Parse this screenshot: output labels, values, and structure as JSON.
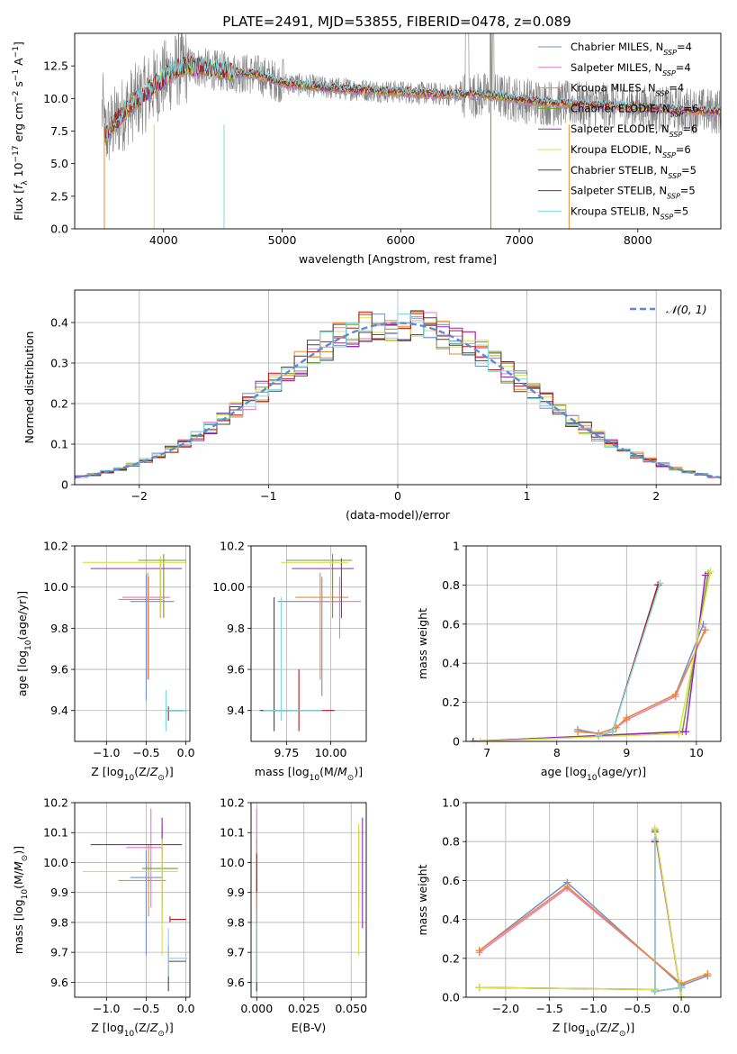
{
  "figure": {
    "title": "PLATE=2491, MJD=53855, FIBERID=0478, z=0.089"
  },
  "colors": {
    "Chabrier MILES": "#6f8fd6",
    "Salpeter MILES": "#e37ac8",
    "Kroupa MILES": "#ef8a2a",
    "Chabrier ELODIE": "#6f9e2f",
    "Salpeter ELODIE": "#9a24b8",
    "Kroupa ELODIE": "#d8e04a",
    "Chabrier STELIB": "#444444",
    "Salpeter STELIB": "#b01a1a",
    "Kroupa STELIB": "#7fd8e0",
    "data": "#7f7f7f",
    "gauss": "#5b8bd6"
  },
  "chart_data": [
    {
      "id": "spectrum",
      "type": "line",
      "xlabel": "wavelength [Angstrom, rest frame]",
      "ylabel": "Flux [f_λ 10^-17 erg cm^-2 s^-1 A^-1]",
      "xlim": [
        3250,
        8700
      ],
      "ylim": [
        0,
        15
      ],
      "xticks": [
        4000,
        5000,
        6000,
        7000,
        8000
      ],
      "yticks": [
        0.0,
        2.5,
        5.0,
        7.5,
        10.0,
        12.5
      ],
      "grid": false,
      "legend_position": "upper-right",
      "legend": [
        {
          "base": "Chabrier MILES, N",
          "sub": "SSP",
          "tail": "=4"
        },
        {
          "base": "Salpeter MILES, N",
          "sub": "SSP",
          "tail": "=4"
        },
        {
          "base": "Kroupa MILES, N",
          "sub": "SSP",
          "tail": "=4"
        },
        {
          "base": "Chabrier ELODIE, N",
          "sub": "SSP",
          "tail": "=6"
        },
        {
          "base": "Salpeter ELODIE, N",
          "sub": "SSP",
          "tail": "=6"
        },
        {
          "base": "Kroupa ELODIE, N",
          "sub": "SSP",
          "tail": "=6"
        },
        {
          "base": "Chabrier STELIB, N",
          "sub": "SSP",
          "tail": "=5"
        },
        {
          "base": "Salpeter STELIB, N",
          "sub": "SSP",
          "tail": "=5"
        },
        {
          "base": "Kroupa STELIB, N",
          "sub": "SSP",
          "tail": "=5"
        }
      ],
      "model_curve": {
        "x": [
          3500,
          3600,
          3700,
          3800,
          3900,
          4000,
          4100,
          4200,
          4300,
          4400,
          4500,
          4600,
          4700,
          4800,
          4900,
          5000,
          5200,
          5400,
          5600,
          5800,
          6000,
          6200,
          6400,
          6600,
          6800,
          7000,
          7200,
          7400,
          7600,
          7800,
          8000,
          8200,
          8400,
          8700
        ],
        "y": [
          7.2,
          8.2,
          9.3,
          10.0,
          10.8,
          11.5,
          12.2,
          12.5,
          12.4,
          12.2,
          12.1,
          12.0,
          11.9,
          11.8,
          11.5,
          11.2,
          11.0,
          10.8,
          10.7,
          10.6,
          10.5,
          10.4,
          10.3,
          10.3,
          10.2,
          9.9,
          9.7,
          9.6,
          9.5,
          9.4,
          9.3,
          9.2,
          9.1,
          9.0
        ]
      }
    },
    {
      "id": "residuals",
      "type": "line",
      "xlabel": "(data-model)/error",
      "ylabel": "Normed distribution",
      "xlim": [
        -2.5,
        2.5
      ],
      "ylim": [
        0,
        0.48
      ],
      "xticks": [
        -2,
        -1,
        0,
        1,
        2
      ],
      "yticks": [
        0.0,
        0.1,
        0.2,
        0.3,
        0.4
      ],
      "grid": true,
      "legend_position": "upper-right",
      "legend_label": "𝒩(0, 1)",
      "gaussian": {
        "mean": 0,
        "sigma": 1
      }
    },
    {
      "id": "age_vs_Z",
      "type": "scatter",
      "xlabel": "Z [log10(Z/Z⊙)]",
      "ylabel": "age  [log10(age/yr)]",
      "xlim": [
        -1.4,
        0.05
      ],
      "ylim": [
        9.25,
        10.2
      ],
      "xticks": [
        -1.0,
        -0.5,
        0.0
      ],
      "yticks": [
        9.4,
        9.6,
        9.8,
        10.0,
        10.2
      ],
      "grid": true,
      "crosses": [
        {
          "s": "Chabrier MILES",
          "x": -0.5,
          "y": 9.93,
          "xe": [
            -0.7,
            -0.15
          ],
          "ye": [
            9.45,
            10.06
          ]
        },
        {
          "s": "Salpeter MILES",
          "x": -0.47,
          "y": 9.95,
          "xe": [
            -0.8,
            -0.2
          ],
          "ye": [
            9.55,
            10.05
          ]
        },
        {
          "s": "Kroupa MILES",
          "x": -0.48,
          "y": 9.94,
          "xe": [
            -0.85,
            -0.3
          ],
          "ye": [
            9.55,
            10.07
          ]
        },
        {
          "s": "Chabrier ELODIE",
          "x": -0.28,
          "y": 10.13,
          "xe": [
            -0.6,
            0.0
          ],
          "ye": [
            9.85,
            10.16
          ]
        },
        {
          "s": "Salpeter ELODIE",
          "x": -0.32,
          "y": 10.09,
          "xe": [
            -1.2,
            -0.05
          ],
          "ye": [
            9.85,
            10.14
          ]
        },
        {
          "s": "Kroupa ELODIE",
          "x": -0.32,
          "y": 10.12,
          "xe": [
            -1.3,
            0.0
          ],
          "ye": [
            9.85,
            10.15
          ]
        },
        {
          "s": "Chabrier STELIB",
          "x": -0.25,
          "y": 9.4,
          "xe": [
            -0.25,
            0.0
          ],
          "ye": [
            9.3,
            9.45
          ]
        },
        {
          "s": "Salpeter STELIB",
          "x": -0.22,
          "y": 9.4,
          "xe": [
            -0.22,
            -0.05
          ],
          "ye": [
            9.35,
            9.42
          ]
        },
        {
          "s": "Kroupa STELIB",
          "x": -0.25,
          "y": 9.4,
          "xe": [
            -0.25,
            0.02
          ],
          "ye": [
            9.3,
            9.5
          ]
        }
      ]
    },
    {
      "id": "age_vs_mass",
      "type": "scatter",
      "xlabel": "mass [log10(M/M⊙)]",
      "ylabel": "",
      "xlim": [
        9.55,
        10.2
      ],
      "ylim": [
        9.25,
        10.2
      ],
      "xticks": [
        9.75,
        10.0
      ],
      "yticks": [
        9.4,
        9.6,
        9.8,
        10.0,
        10.2
      ],
      "grid": true,
      "crosses": [
        {
          "s": "Chabrier MILES",
          "x": 9.95,
          "y": 9.93,
          "xe": [
            9.7,
            10.05
          ],
          "ye": [
            9.47,
            10.05
          ]
        },
        {
          "s": "Salpeter MILES",
          "x": 10.05,
          "y": 9.93,
          "xe": [
            9.9,
            10.17
          ],
          "ye": [
            9.75,
            10.05
          ]
        },
        {
          "s": "Kroupa MILES",
          "x": 9.94,
          "y": 9.95,
          "xe": [
            9.8,
            10.1
          ],
          "ye": [
            9.55,
            10.07
          ]
        },
        {
          "s": "Chabrier ELODIE",
          "x": 10.01,
          "y": 10.13,
          "xe": [
            9.75,
            10.12
          ],
          "ye": [
            9.85,
            10.16
          ]
        },
        {
          "s": "Salpeter ELODIE",
          "x": 10.06,
          "y": 10.09,
          "xe": [
            9.78,
            10.13
          ],
          "ye": [
            9.85,
            10.14
          ]
        },
        {
          "s": "Kroupa ELODIE",
          "x": 10.0,
          "y": 10.12,
          "xe": [
            9.72,
            10.1
          ],
          "ye": [
            9.85,
            10.15
          ]
        },
        {
          "s": "Chabrier STELIB",
          "x": 9.68,
          "y": 9.4,
          "xe": [
            9.6,
            9.78
          ],
          "ye": [
            9.3,
            9.95
          ]
        },
        {
          "s": "Salpeter STELIB",
          "x": 9.82,
          "y": 9.4,
          "xe": [
            9.65,
            10.02
          ],
          "ye": [
            9.3,
            9.6
          ]
        },
        {
          "s": "Kroupa STELIB",
          "x": 9.72,
          "y": 9.4,
          "xe": [
            9.62,
            9.95
          ],
          "ye": [
            9.35,
            9.95
          ]
        }
      ]
    },
    {
      "id": "weight_vs_age",
      "type": "line",
      "xlabel": "age  [log10(age/yr)]",
      "ylabel": "mass weight",
      "xlim": [
        6.7,
        10.35
      ],
      "ylim": [
        0,
        1.0
      ],
      "xticks": [
        7,
        8,
        9,
        10
      ],
      "yticks": [
        0.0,
        0.2,
        0.4,
        0.6,
        0.8,
        1.0
      ],
      "grid": true,
      "series": [
        {
          "s": "Chabrier MILES",
          "x": [
            8.3,
            8.6,
            8.85,
            9.0,
            9.7,
            10.1
          ],
          "y": [
            0.06,
            0.04,
            0.07,
            0.12,
            0.24,
            0.6
          ]
        },
        {
          "s": "Salpeter MILES",
          "x": [
            8.3,
            8.6,
            8.85,
            9.0,
            9.7,
            10.12
          ],
          "y": [
            0.05,
            0.04,
            0.07,
            0.11,
            0.23,
            0.57
          ]
        },
        {
          "s": "Kroupa MILES",
          "x": [
            8.3,
            8.6,
            8.85,
            9.0,
            9.7,
            10.13
          ],
          "y": [
            0.05,
            0.04,
            0.07,
            0.12,
            0.24,
            0.57
          ]
        },
        {
          "s": "Chabrier ELODIE",
          "x": [
            6.8,
            9.8,
            10.17
          ],
          "y": [
            0.0,
            0.05,
            0.86
          ]
        },
        {
          "s": "Salpeter ELODIE",
          "x": [
            6.8,
            9.85,
            10.13
          ],
          "y": [
            0.0,
            0.05,
            0.85
          ]
        },
        {
          "s": "Kroupa ELODIE",
          "x": [
            6.9,
            9.75,
            10.2
          ],
          "y": [
            0.0,
            0.04,
            0.87
          ]
        },
        {
          "s": "Chabrier STELIB",
          "x": [
            8.6,
            8.8,
            9.45
          ],
          "y": [
            0.03,
            0.05,
            0.8
          ]
        },
        {
          "s": "Salpeter STELIB",
          "x": [
            8.6,
            8.8,
            9.45
          ],
          "y": [
            0.03,
            0.05,
            0.8
          ]
        },
        {
          "s": "Kroupa STELIB",
          "x": [
            8.6,
            8.8,
            9.48
          ],
          "y": [
            0.03,
            0.05,
            0.81
          ]
        }
      ]
    },
    {
      "id": "mass_vs_Z",
      "type": "scatter",
      "xlabel": "Z [log10(Z/Z⊙)]",
      "ylabel": "mass [log10(M/M⊙)]",
      "xlim": [
        -1.4,
        0.05
      ],
      "ylim": [
        9.55,
        10.2
      ],
      "xticks": [
        -1.0,
        -0.5,
        0.0
      ],
      "yticks": [
        9.6,
        9.7,
        9.8,
        9.9,
        10.0,
        10.1,
        10.2
      ],
      "grid": true,
      "crosses": [
        {
          "s": "Chabrier MILES",
          "x": -0.5,
          "y": 9.95,
          "xe": [
            -0.7,
            -0.3
          ],
          "ye": [
            9.69,
            10.04
          ]
        },
        {
          "s": "Salpeter MILES",
          "x": -0.44,
          "y": 10.05,
          "xe": [
            -0.75,
            -0.3
          ],
          "ye": [
            9.85,
            10.18
          ]
        },
        {
          "s": "Kroupa MILES",
          "x": -0.47,
          "y": 9.94,
          "xe": [
            -0.85,
            -0.25
          ],
          "ye": [
            9.82,
            10.06
          ]
        },
        {
          "s": "Chabrier ELODIE",
          "x": -0.3,
          "y": 9.98,
          "xe": [
            -0.55,
            -0.1
          ],
          "ye": [
            9.8,
            10.12
          ]
        },
        {
          "s": "Salpeter ELODIE",
          "x": -0.3,
          "y": 10.06,
          "xe": [
            -1.2,
            -0.05
          ],
          "ye": [
            9.85,
            10.15
          ]
        },
        {
          "s": "Kroupa ELODIE",
          "x": -0.3,
          "y": 9.97,
          "xe": [
            -1.3,
            -0.1
          ],
          "ye": [
            9.69,
            10.08
          ]
        },
        {
          "s": "Chabrier STELIB",
          "x": -0.22,
          "y": 9.67,
          "xe": [
            -0.22,
            0.0
          ],
          "ye": [
            9.57,
            9.72
          ]
        },
        {
          "s": "Salpeter STELIB",
          "x": -0.2,
          "y": 9.81,
          "xe": [
            -0.2,
            0.0
          ],
          "ye": [
            9.8,
            9.82
          ]
        },
        {
          "s": "Kroupa STELIB",
          "x": -0.22,
          "y": 9.68,
          "xe": [
            -0.22,
            0.02
          ],
          "ye": [
            9.62,
            9.78
          ]
        }
      ]
    },
    {
      "id": "mass_vs_ebv",
      "type": "scatter",
      "xlabel": "E(B-V)",
      "ylabel": "",
      "xlim": [
        -0.003,
        0.058
      ],
      "ylim": [
        9.55,
        10.2
      ],
      "xticks": [
        0.0,
        0.025,
        0.05
      ],
      "yticks": [
        9.6,
        9.7,
        9.8,
        9.9,
        10.0,
        10.1,
        10.2
      ],
      "grid": true,
      "crosses": [
        {
          "s": "Chabrier MILES",
          "x": 0.0,
          "y": 9.75,
          "xe": [
            0.0,
            0.0
          ],
          "ye": [
            9.57,
            9.95
          ]
        },
        {
          "s": "Salpeter MILES",
          "x": 0.0,
          "y": 10.0,
          "xe": [
            0.0,
            0.0
          ],
          "ye": [
            9.85,
            10.18
          ]
        },
        {
          "s": "Kroupa MILES",
          "x": 0.0,
          "y": 9.95,
          "xe": [
            0.0,
            0.0
          ],
          "ye": [
            9.82,
            10.08
          ]
        },
        {
          "s": "Chabrier ELODIE",
          "x": 0.054,
          "y": 10.0,
          "xe": [
            0.054,
            0.054
          ],
          "ye": [
            9.85,
            10.12
          ]
        },
        {
          "s": "Salpeter ELODIE",
          "x": 0.056,
          "y": 9.95,
          "xe": [
            0.056,
            0.056
          ],
          "ye": [
            9.78,
            10.15
          ]
        },
        {
          "s": "Kroupa ELODIE",
          "x": 0.054,
          "y": 9.9,
          "xe": [
            0.054,
            0.054
          ],
          "ye": [
            9.69,
            10.13
          ]
        },
        {
          "s": "Chabrier STELIB",
          "x": 0.0,
          "y": 9.7,
          "xe": [
            0.0,
            0.0
          ],
          "ye": [
            9.57,
            9.8
          ]
        },
        {
          "s": "Salpeter STELIB",
          "x": 0.0,
          "y": 9.95,
          "xe": [
            0.0,
            0.0
          ],
          "ye": [
            9.9,
            10.03
          ]
        },
        {
          "s": "Kroupa STELIB",
          "x": 0.0,
          "y": 9.7,
          "xe": [
            0.0,
            0.0
          ],
          "ye": [
            9.6,
            9.8
          ]
        }
      ]
    },
    {
      "id": "weight_vs_Z",
      "type": "line",
      "xlabel": "Z [log10(Z/Z⊙)]",
      "ylabel": "mass weight",
      "xlim": [
        -2.45,
        0.45
      ],
      "ylim": [
        0,
        1.0
      ],
      "xticks": [
        -2.0,
        -1.5,
        -1.0,
        -0.5,
        0.0
      ],
      "yticks": [
        0.0,
        0.2,
        0.4,
        0.6,
        0.8,
        1.0
      ],
      "grid": true,
      "series": [
        {
          "s": "Chabrier MILES",
          "x": [
            -2.3,
            -1.3,
            0.0,
            0.3
          ],
          "y": [
            0.24,
            0.59,
            0.06,
            0.11
          ]
        },
        {
          "s": "Salpeter MILES",
          "x": [
            -2.3,
            -1.3,
            0.0,
            0.3
          ],
          "y": [
            0.23,
            0.56,
            0.07,
            0.12
          ]
        },
        {
          "s": "Kroupa MILES",
          "x": [
            -2.3,
            -1.3,
            0.0,
            0.3
          ],
          "y": [
            0.24,
            0.57,
            0.07,
            0.12
          ]
        },
        {
          "s": "Chabrier ELODIE",
          "x": [
            -2.3,
            -0.3,
            -0.3,
            0.0
          ],
          "y": [
            0.05,
            0.04,
            0.86,
            0.0
          ]
        },
        {
          "s": "Salpeter ELODIE",
          "x": [
            -2.3,
            -0.3,
            -0.3,
            0.0
          ],
          "y": [
            0.05,
            0.04,
            0.85,
            0.0
          ]
        },
        {
          "s": "Kroupa ELODIE",
          "x": [
            -2.3,
            -0.3,
            -0.3,
            0.0
          ],
          "y": [
            0.05,
            0.04,
            0.87,
            0.0
          ]
        },
        {
          "s": "Chabrier STELIB",
          "x": [
            -0.3,
            -0.3,
            0.0
          ],
          "y": [
            0.8,
            0.03,
            0.05
          ]
        },
        {
          "s": "Salpeter STELIB",
          "x": [
            -0.3,
            -0.3,
            0.0
          ],
          "y": [
            0.8,
            0.03,
            0.05
          ]
        },
        {
          "s": "Kroupa STELIB",
          "x": [
            -0.3,
            -0.3,
            0.0
          ],
          "y": [
            0.81,
            0.03,
            0.05
          ]
        }
      ]
    }
  ]
}
